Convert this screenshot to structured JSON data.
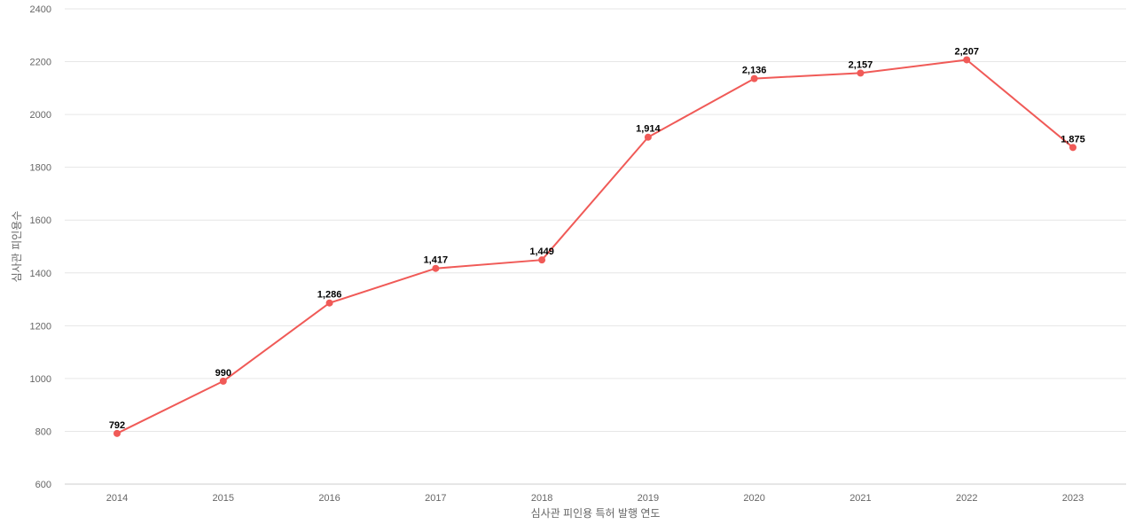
{
  "chart_data": {
    "type": "line",
    "title": "",
    "xlabel": "심사관 피인용 특허 발행 연도",
    "ylabel": "심사관 피인용수",
    "ylim": [
      600,
      2400
    ],
    "yticks": [
      600,
      800,
      1000,
      1200,
      1400,
      1600,
      1800,
      2000,
      2200,
      2400
    ],
    "categories": [
      "2014",
      "2015",
      "2016",
      "2017",
      "2018",
      "2019",
      "2020",
      "2021",
      "2022",
      "2023"
    ],
    "series": [
      {
        "color": "#f05a57",
        "values": [
          792,
          990,
          1286,
          1417,
          1449,
          1914,
          2136,
          2157,
          2207,
          1875
        ],
        "labels": [
          "792",
          "990",
          "1,286",
          "1,417",
          "1,449",
          "1,914",
          "2,136",
          "2,157",
          "2,207",
          "1,875"
        ]
      }
    ],
    "grid": true,
    "legend": "none"
  }
}
